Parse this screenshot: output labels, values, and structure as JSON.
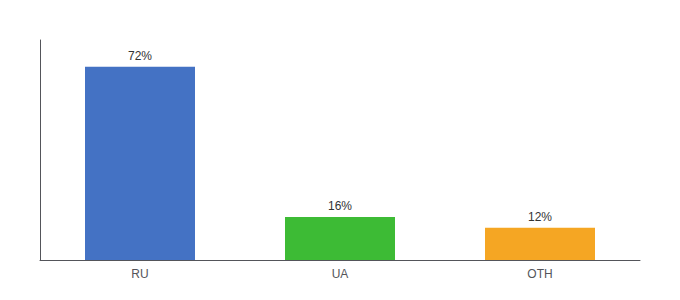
{
  "chart_data": {
    "type": "bar",
    "categories": [
      "RU",
      "UA",
      "OTH"
    ],
    "values": [
      72,
      16,
      12
    ],
    "value_labels": [
      "72%",
      "16%",
      "12%"
    ],
    "colors": [
      "#4472c4",
      "#3dbb35",
      "#f5a623"
    ],
    "ylim": [
      0,
      82
    ],
    "grid": false,
    "data_labels": true,
    "tick_labels": "x"
  }
}
